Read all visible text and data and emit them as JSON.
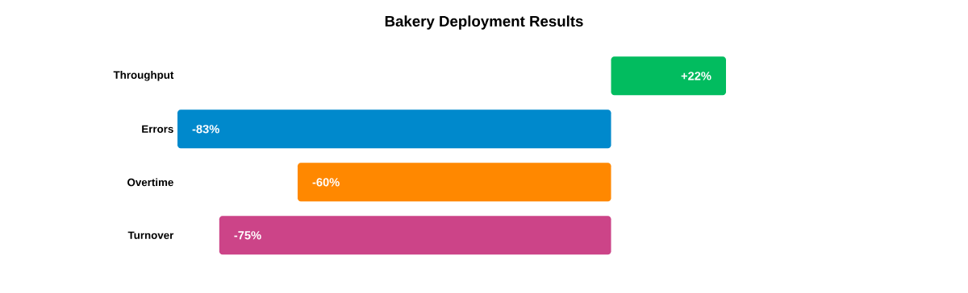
{
  "chart_data": {
    "type": "bar",
    "orientation": "horizontal",
    "title": "Bakery Deployment Results",
    "categories": [
      "Throughput",
      "Errors",
      "Overtime",
      "Turnover"
    ],
    "values": [
      22,
      -83,
      -60,
      -75
    ],
    "colors": [
      "#02bc5f",
      "#0089cc",
      "#ff8800",
      "#cc4488"
    ],
    "value_labels": [
      "+22%",
      "-83%",
      "-60%",
      "-75%"
    ]
  }
}
